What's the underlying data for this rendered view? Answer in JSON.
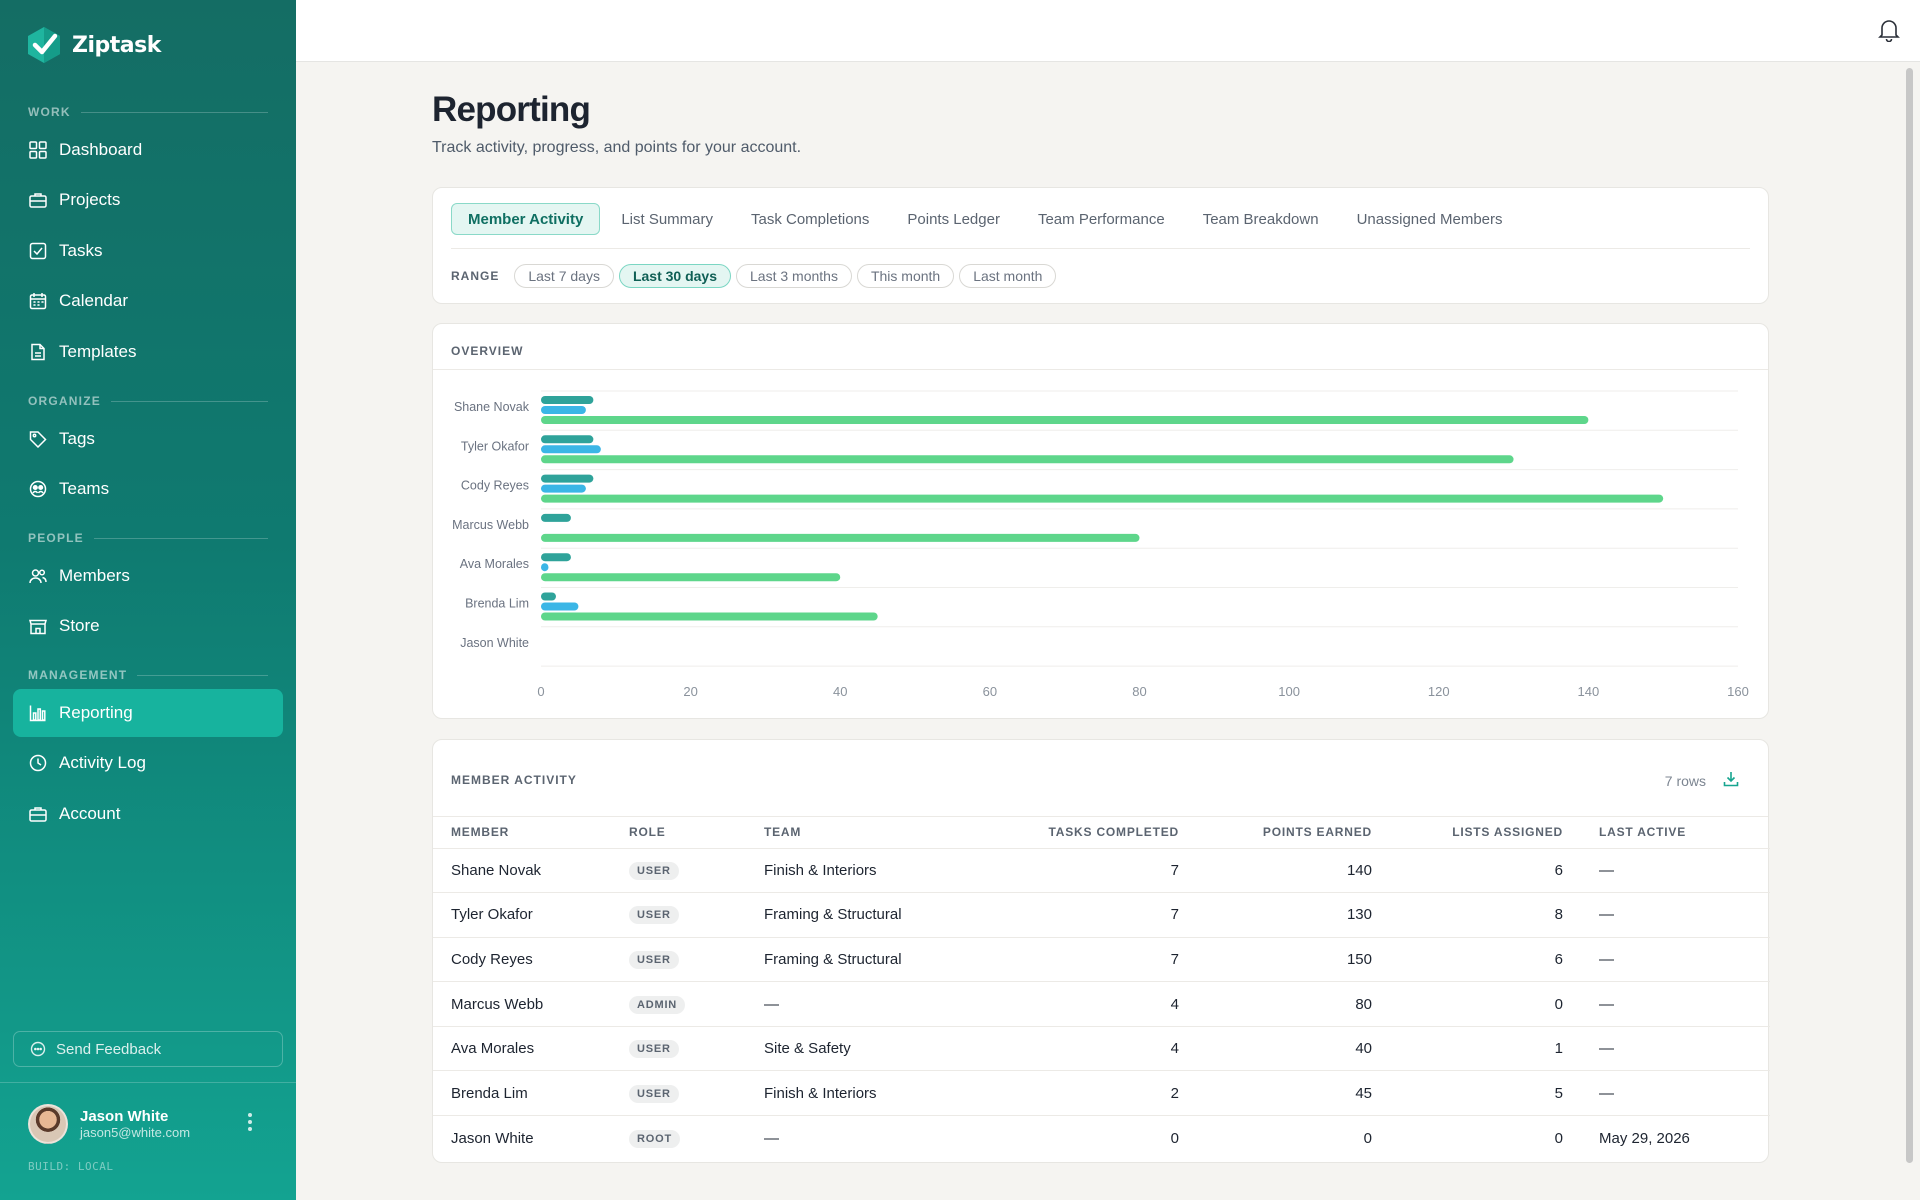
{
  "app": {
    "name": "Ziptask",
    "build": "BUILD: LOCAL"
  },
  "sidebar": {
    "sections": {
      "work": "WORK",
      "organize": "ORGANIZE",
      "people": "PEOPLE",
      "management": "MANAGEMENT"
    },
    "items": {
      "dashboard": "Dashboard",
      "projects": "Projects",
      "tasks": "Tasks",
      "calendar": "Calendar",
      "templates": "Templates",
      "tags": "Tags",
      "teams": "Teams",
      "members": "Members",
      "store": "Store",
      "reporting": "Reporting",
      "activity_log": "Activity Log",
      "account": "Account"
    },
    "active_item": "Reporting",
    "feedback": "Send Feedback",
    "user": {
      "name": "Jason White",
      "email": "jason5@white.com"
    }
  },
  "page": {
    "title": "Reporting",
    "subtitle": "Track activity, progress, and points for your account."
  },
  "tabs": [
    "Member Activity",
    "List Summary",
    "Task Completions",
    "Points Ledger",
    "Team Performance",
    "Team Breakdown",
    "Unassigned Members"
  ],
  "active_tab": "Member Activity",
  "range": {
    "label": "RANGE",
    "options": [
      "Last 7 days",
      "Last 30 days",
      "Last 3 months",
      "This month",
      "Last month"
    ],
    "selected": "Last 30 days"
  },
  "overview": {
    "title": "OVERVIEW"
  },
  "chart_data": {
    "type": "bar",
    "orientation": "horizontal",
    "categories": [
      "Shane Novak",
      "Tyler Okafor",
      "Cody Reyes",
      "Marcus Webb",
      "Ava Morales",
      "Brenda Lim",
      "Jason White"
    ],
    "series": [
      {
        "values": [
          7,
          7,
          7,
          4,
          4,
          2,
          0
        ],
        "color": "#2fa39a"
      },
      {
        "values": [
          6,
          8,
          6,
          0,
          1,
          5,
          0
        ],
        "color": "#3bb6e6"
      },
      {
        "values": [
          140,
          130,
          150,
          80,
          40,
          45,
          0
        ],
        "color": "#5ed68b"
      }
    ],
    "xticks": [
      0,
      20,
      40,
      60,
      80,
      100,
      120,
      140,
      160
    ],
    "xlim": [
      0,
      160
    ],
    "grid": true,
    "legend": "none"
  },
  "activity": {
    "title": "MEMBER ACTIVITY",
    "rows_label": "7 rows",
    "columns": [
      "MEMBER",
      "ROLE",
      "TEAM",
      "TASKS COMPLETED",
      "POINTS EARNED",
      "LISTS ASSIGNED",
      "LAST ACTIVE"
    ],
    "rows": [
      [
        "Shane Novak",
        "USER",
        "Finish & Interiors",
        "7",
        "140",
        "6",
        "—"
      ],
      [
        "Tyler Okafor",
        "USER",
        "Framing & Structural",
        "7",
        "130",
        "8",
        "—"
      ],
      [
        "Cody Reyes",
        "USER",
        "Framing & Structural",
        "7",
        "150",
        "6",
        "—"
      ],
      [
        "Marcus Webb",
        "ADMIN",
        "—",
        "4",
        "80",
        "0",
        "—"
      ],
      [
        "Ava Morales",
        "USER",
        "Site & Safety",
        "4",
        "40",
        "1",
        "—"
      ],
      [
        "Brenda Lim",
        "USER",
        "Finish & Interiors",
        "2",
        "45",
        "5",
        "—"
      ],
      [
        "Jason White",
        "ROOT",
        "—",
        "0",
        "0",
        "0",
        "May 29, 2026"
      ]
    ]
  }
}
